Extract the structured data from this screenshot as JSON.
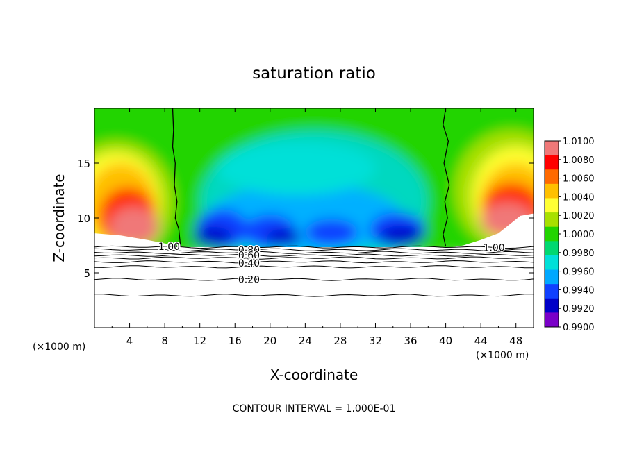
{
  "chart_data": {
    "type": "heatmap",
    "title": "saturation ratio",
    "xlabel": "X-coordinate",
    "ylabel": "Z-coordinate",
    "x_unit_left": "(×1000 m)",
    "x_unit_right": "(×1000 m)",
    "xlim": [
      0,
      50
    ],
    "ylim": [
      0,
      20
    ],
    "x_ticks": [
      4,
      8,
      12,
      16,
      20,
      24,
      28,
      32,
      36,
      40,
      44,
      48
    ],
    "y_ticks": [
      5,
      10,
      15
    ],
    "footer": "CONTOUR INTERVAL = 1.000E-01",
    "colorbar": {
      "ticks": [
        "1.0100",
        "1.0080",
        "1.0060",
        "1.0040",
        "1.0020",
        "1.0000",
        "0.9980",
        "0.9960",
        "0.9940",
        "0.9920",
        "0.9900"
      ],
      "colors": [
        "#f07878",
        "#ff0000",
        "#ff6a00",
        "#ffc000",
        "#ffff33",
        "#a8e000",
        "#22d400",
        "#00d870",
        "#00e0d8",
        "#00a8ff",
        "#1040ff",
        "#0000c8",
        "#7a00c8"
      ]
    },
    "contour_labels": [
      {
        "text": "1.00",
        "x": 8.5,
        "z": 7.4
      },
      {
        "text": "1.00",
        "x": 45.5,
        "z": 7.3
      },
      {
        "text": "0.80",
        "x": 17.6,
        "z": 7.1
      },
      {
        "text": "0.60",
        "x": 17.6,
        "z": 6.6
      },
      {
        "text": "0.40",
        "x": 17.6,
        "z": 5.9
      },
      {
        "text": "0.20",
        "x": 17.6,
        "z": 4.4
      }
    ],
    "contour_lines_z": [
      7.35,
      7.1,
      6.85,
      6.6,
      6.35,
      6.0,
      5.55,
      4.4,
      2.95
    ],
    "boundary_lines": [
      {
        "name": "1.00-left",
        "points": [
          [
            8.9,
            20
          ],
          [
            9.0,
            18
          ],
          [
            8.9,
            16.5
          ],
          [
            9.2,
            15
          ],
          [
            9.1,
            13
          ],
          [
            9.4,
            11.5
          ],
          [
            9.2,
            10
          ],
          [
            9.6,
            9
          ],
          [
            9.8,
            7.4
          ]
        ]
      },
      {
        "name": "1.00-right",
        "points": [
          [
            40.0,
            20
          ],
          [
            39.7,
            18.5
          ],
          [
            40.3,
            17
          ],
          [
            39.8,
            15
          ],
          [
            40.4,
            13
          ],
          [
            39.9,
            11.5
          ],
          [
            40.2,
            10
          ],
          [
            39.7,
            8.5
          ],
          [
            40.0,
            7.4
          ]
        ]
      }
    ]
  }
}
